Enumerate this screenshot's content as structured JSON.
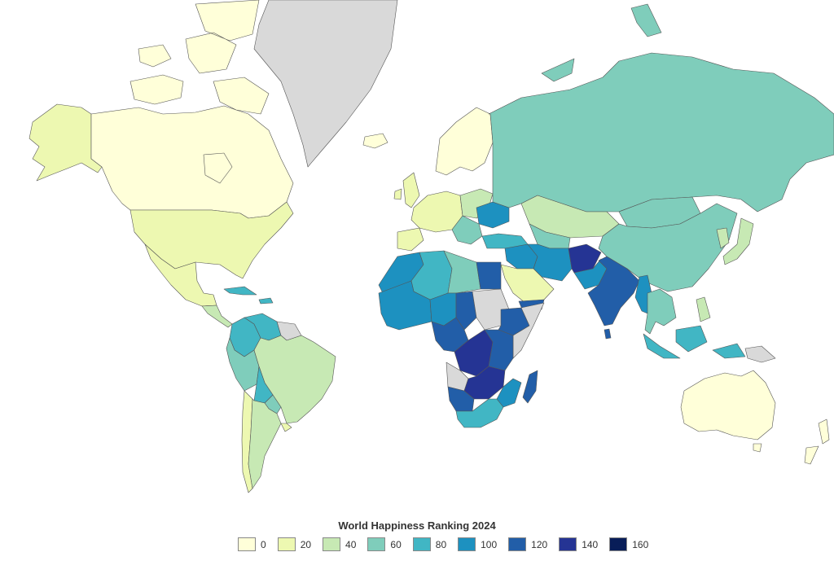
{
  "legend": {
    "title": "World Happiness Ranking 2024",
    "items": [
      {
        "label": "0",
        "color": "#ffffd9"
      },
      {
        "label": "20",
        "color": "#edf8b1"
      },
      {
        "label": "40",
        "color": "#c7e9b4"
      },
      {
        "label": "60",
        "color": "#7fcdbb"
      },
      {
        "label": "80",
        "color": "#41b6c4"
      },
      {
        "label": "100",
        "color": "#1d91c0"
      },
      {
        "label": "120",
        "color": "#225ea8"
      },
      {
        "label": "140",
        "color": "#253494"
      },
      {
        "label": "160",
        "color": "#081d58"
      }
    ]
  },
  "no_data_color": "#d9d9d9",
  "map": {
    "regions": [
      {
        "name": "alaska",
        "rank": 20
      },
      {
        "name": "canada",
        "rank": 15
      },
      {
        "name": "canadian-arctic",
        "rank": 15
      },
      {
        "name": "greenland",
        "rank": null
      },
      {
        "name": "usa",
        "rank": 23
      },
      {
        "name": "mexico",
        "rank": 25
      },
      {
        "name": "central-america",
        "rank": 45
      },
      {
        "name": "cuba-caribbean",
        "rank": 80
      },
      {
        "name": "colombia",
        "rank": 85
      },
      {
        "name": "venezuela",
        "rank": 90
      },
      {
        "name": "guianas",
        "rank": null
      },
      {
        "name": "ecuador-peru",
        "rank": 75
      },
      {
        "name": "brazil",
        "rank": 45
      },
      {
        "name": "bolivia",
        "rank": 90
      },
      {
        "name": "paraguay",
        "rank": 70
      },
      {
        "name": "chile",
        "rank": 35
      },
      {
        "name": "argentina",
        "rank": 48
      },
      {
        "name": "uruguay",
        "rank": 30
      },
      {
        "name": "iceland",
        "rank": 3
      },
      {
        "name": "scandinavia",
        "rank": 5
      },
      {
        "name": "western-europe",
        "rank": 20
      },
      {
        "name": "iberia",
        "rank": 38
      },
      {
        "name": "uk-ireland",
        "rank": 20
      },
      {
        "name": "eastern-europe",
        "rank": 45
      },
      {
        "name": "ukraine",
        "rank": 105
      },
      {
        "name": "balkans",
        "rank": 75
      },
      {
        "name": "turkey",
        "rank": 98
      },
      {
        "name": "russia",
        "rank": 72
      },
      {
        "name": "kazakhstan",
        "rank": 45
      },
      {
        "name": "central-asia",
        "rank": 60
      },
      {
        "name": "mongolia",
        "rank": 78
      },
      {
        "name": "china",
        "rank": 60
      },
      {
        "name": "korea",
        "rank": 52
      },
      {
        "name": "japan",
        "rank": 51
      },
      {
        "name": "iran",
        "rank": 100
      },
      {
        "name": "iraq-syria",
        "rank": 100
      },
      {
        "name": "saudi-arabia",
        "rank": 28
      },
      {
        "name": "yemen",
        "rank": 133
      },
      {
        "name": "afghanistan",
        "rank": 143
      },
      {
        "name": "pakistan",
        "rank": 108
      },
      {
        "name": "india",
        "rank": 126
      },
      {
        "name": "myanmar",
        "rank": 118
      },
      {
        "name": "sri-lanka",
        "rank": 128
      },
      {
        "name": "southeast-asia",
        "rank": 70
      },
      {
        "name": "indonesia",
        "rank": 80
      },
      {
        "name": "philippines",
        "rank": 53
      },
      {
        "name": "papua-new-guinea",
        "rank": null
      },
      {
        "name": "australia",
        "rank": 10
      },
      {
        "name": "new-zealand",
        "rank": 11
      },
      {
        "name": "morocco",
        "rank": 107
      },
      {
        "name": "algeria",
        "rank": 85
      },
      {
        "name": "libya",
        "rank": 66
      },
      {
        "name": "egypt",
        "rank": 127
      },
      {
        "name": "west-africa",
        "rank": 110
      },
      {
        "name": "sahel",
        "rank": 112
      },
      {
        "name": "chad",
        "rank": 120
      },
      {
        "name": "sudan",
        "rank": null
      },
      {
        "name": "ethiopia",
        "rank": 130
      },
      {
        "name": "somalia",
        "rank": null
      },
      {
        "name": "central-africa",
        "rank": 130
      },
      {
        "name": "drc",
        "rank": 140
      },
      {
        "name": "east-africa",
        "rank": 135
      },
      {
        "name": "angola",
        "rank": null
      },
      {
        "name": "zambia-zimbabwe",
        "rank": 150
      },
      {
        "name": "namibia-botswana",
        "rank": 125
      },
      {
        "name": "south-africa",
        "rank": 83
      },
      {
        "name": "mozambique",
        "rank": 100
      },
      {
        "name": "madagascar",
        "rank": 120
      }
    ]
  }
}
